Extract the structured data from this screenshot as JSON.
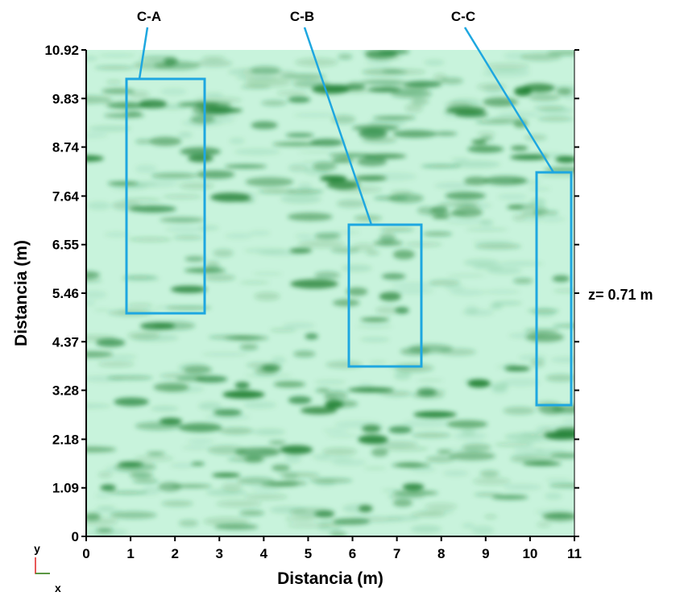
{
  "chart_data": {
    "type": "heatmap",
    "xlabel": "Distancia (m)",
    "ylabel": "Distancia (m)",
    "xlim": [
      0,
      11
    ],
    "ylim": [
      0,
      10.92
    ],
    "xticks": [
      0,
      1,
      2,
      3,
      4,
      5,
      6,
      7,
      8,
      9,
      10,
      11
    ],
    "yticks": [
      0,
      1.09,
      2.18,
      3.28,
      4.37,
      5.46,
      6.55,
      7.64,
      8.74,
      9.83,
      10.92
    ],
    "annotations": [
      "C-A",
      "C-B",
      "C-C"
    ],
    "depth_label": "z= 0.71 m",
    "axis_indicator": {
      "y": "y",
      "x": "x"
    }
  }
}
